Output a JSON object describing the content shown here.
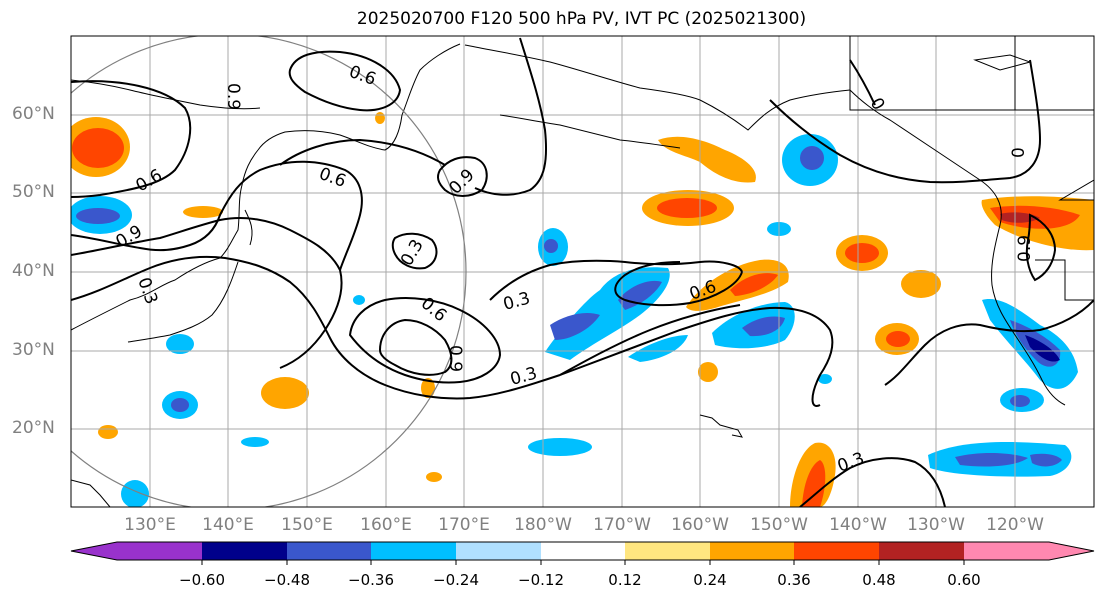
{
  "title": "2025020700 F120 500 hPa PV, IVT PC (2025021300)",
  "lat_labels": [
    "60°N",
    "50°N",
    "40°N",
    "30°N",
    "20°N"
  ],
  "lon_labels": [
    "130°E",
    "140°E",
    "150°E",
    "160°E",
    "170°E",
    "180°W",
    "170°W",
    "160°W",
    "150°W",
    "140°W",
    "130°W",
    "120°W"
  ],
  "colorbar": {
    "tick_labels": [
      "−0.60",
      "−0.48",
      "−0.36",
      "−0.24",
      "−0.12",
      "0.12",
      "0.24",
      "0.36",
      "0.48",
      "0.60"
    ],
    "colors": [
      "#9932cc",
      "#00008b",
      "#3a57cc",
      "#00bfff",
      "#b0e0ff",
      "#ffffff",
      "#ffe680",
      "#ffa500",
      "#ff4500",
      "#b22222",
      "#ff88b0"
    ]
  },
  "contour_labels": [
    "0.6",
    "0.9",
    "0.6",
    "0.9",
    "0.6",
    "0.9",
    "0.3",
    "0.3",
    "0.6",
    "0.9",
    "0.3",
    "0.3",
    "0.6",
    "0.3",
    "0.9",
    "0",
    "0",
    "0.9",
    "0.3"
  ]
}
